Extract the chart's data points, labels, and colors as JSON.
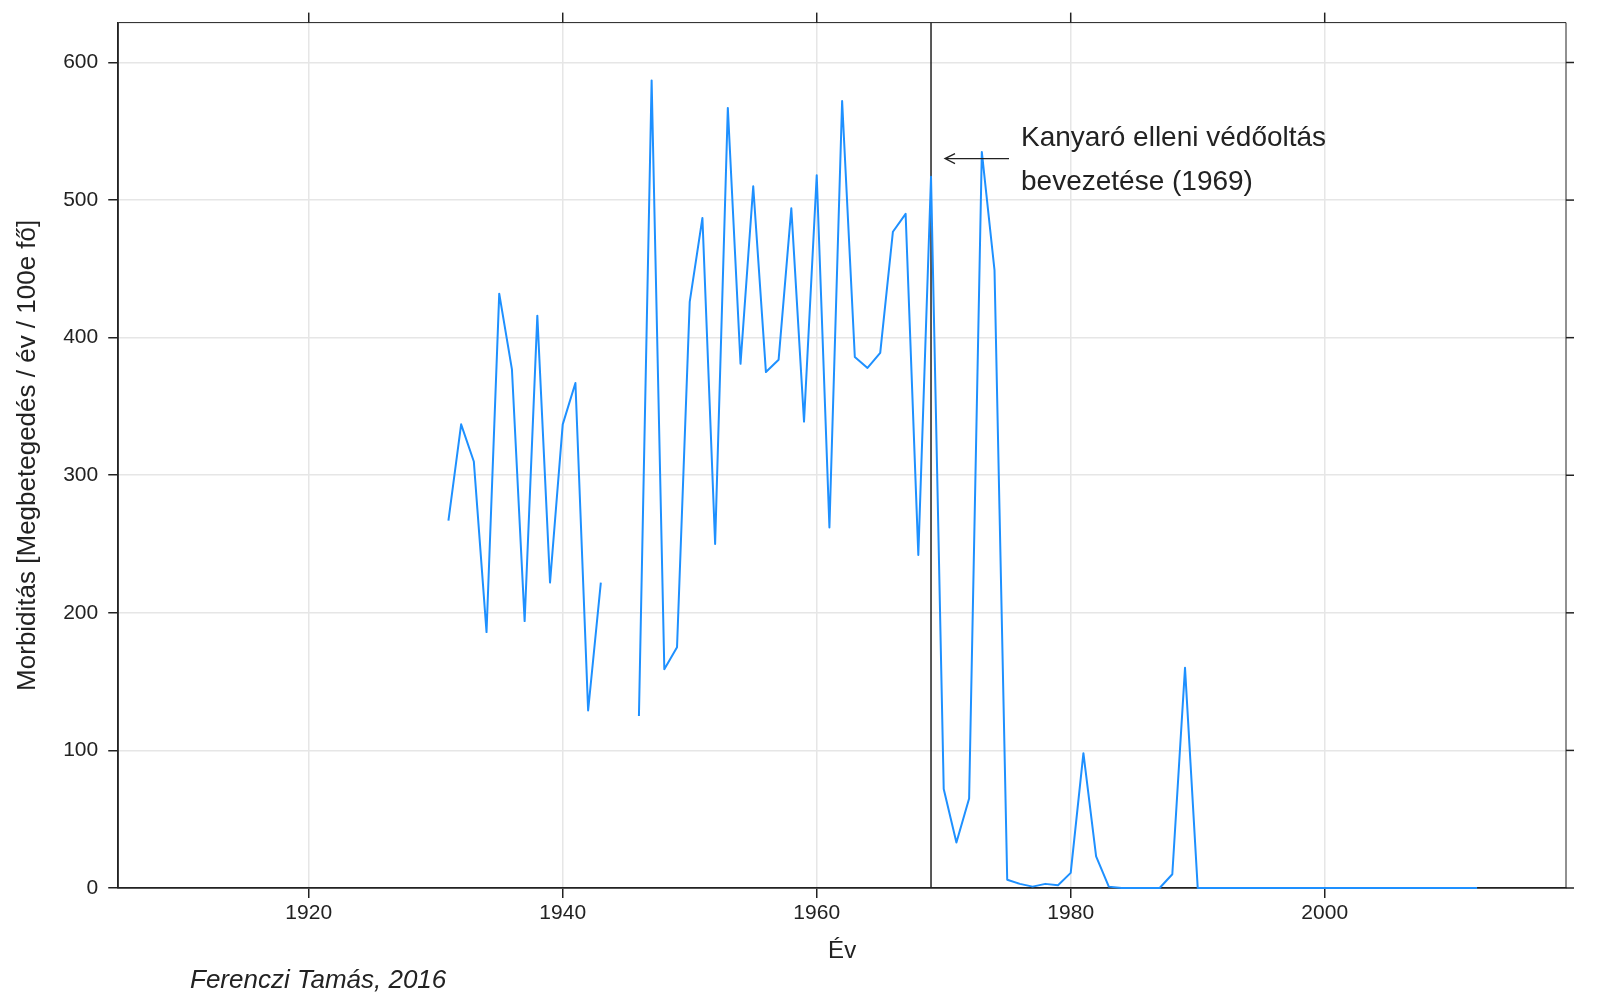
{
  "chart_data": {
    "type": "line",
    "xlabel": "Év",
    "ylabel": "Morbiditás [Megbetegedés / év / 100e fő]",
    "x": [
      1931,
      1932,
      1933,
      1934,
      1935,
      1936,
      1937,
      1938,
      1939,
      1940,
      1941,
      1942,
      1943,
      1944,
      1945,
      1946,
      1947,
      1948,
      1949,
      1950,
      1951,
      1952,
      1953,
      1954,
      1955,
      1956,
      1957,
      1958,
      1959,
      1960,
      1961,
      1962,
      1963,
      1964,
      1965,
      1966,
      1967,
      1968,
      1969,
      1970,
      1971,
      1972,
      1973,
      1974,
      1975,
      1976,
      1977,
      1978,
      1979,
      1980,
      1981,
      1982,
      1983,
      1984,
      1985,
      1986,
      1987,
      1988,
      1989,
      1990,
      1991,
      1992,
      1993,
      1994,
      1995,
      1996,
      1997,
      1998,
      1999,
      2000,
      2001,
      2002,
      2003,
      2004,
      2005,
      2006,
      2007,
      2008,
      2009,
      2010,
      2011,
      2012
    ],
    "series": [
      {
        "color": "#1e90ff",
        "values": [
          267,
          337,
          310,
          186,
          432,
          377,
          194,
          416,
          222,
          337,
          367,
          129,
          222,
          null,
          null,
          125,
          587,
          159,
          175,
          426,
          487,
          250,
          567,
          381,
          510,
          375,
          384,
          494,
          339,
          518,
          262,
          572,
          386,
          378,
          389,
          477,
          490,
          242,
          517,
          72,
          33,
          65,
          535,
          449,
          6,
          3,
          1,
          3,
          2,
          11,
          98,
          23,
          1,
          0,
          0,
          0,
          0,
          10,
          160,
          0,
          0,
          0,
          0,
          0,
          0,
          0,
          0,
          0,
          0,
          0,
          0,
          0,
          0,
          0,
          0,
          0,
          0,
          0,
          0,
          0,
          0,
          0
        ]
      }
    ],
    "xlim": [
      1905,
      2019
    ],
    "ylim": [
      0,
      629
    ],
    "xticks": [
      1920,
      1940,
      1960,
      1980,
      2000
    ],
    "yticks": [
      0,
      100,
      200,
      300,
      400,
      500,
      600
    ],
    "grid": true,
    "marker": "none",
    "line_style": "solid",
    "ref_lines": [
      {
        "axis": "x",
        "value": 1969,
        "label": "Kanyaró elleni védőoltás bevezetése (1969)",
        "color": "#222222"
      }
    ],
    "annotations": [
      "Ferenczi Tamás, 2016"
    ]
  }
}
